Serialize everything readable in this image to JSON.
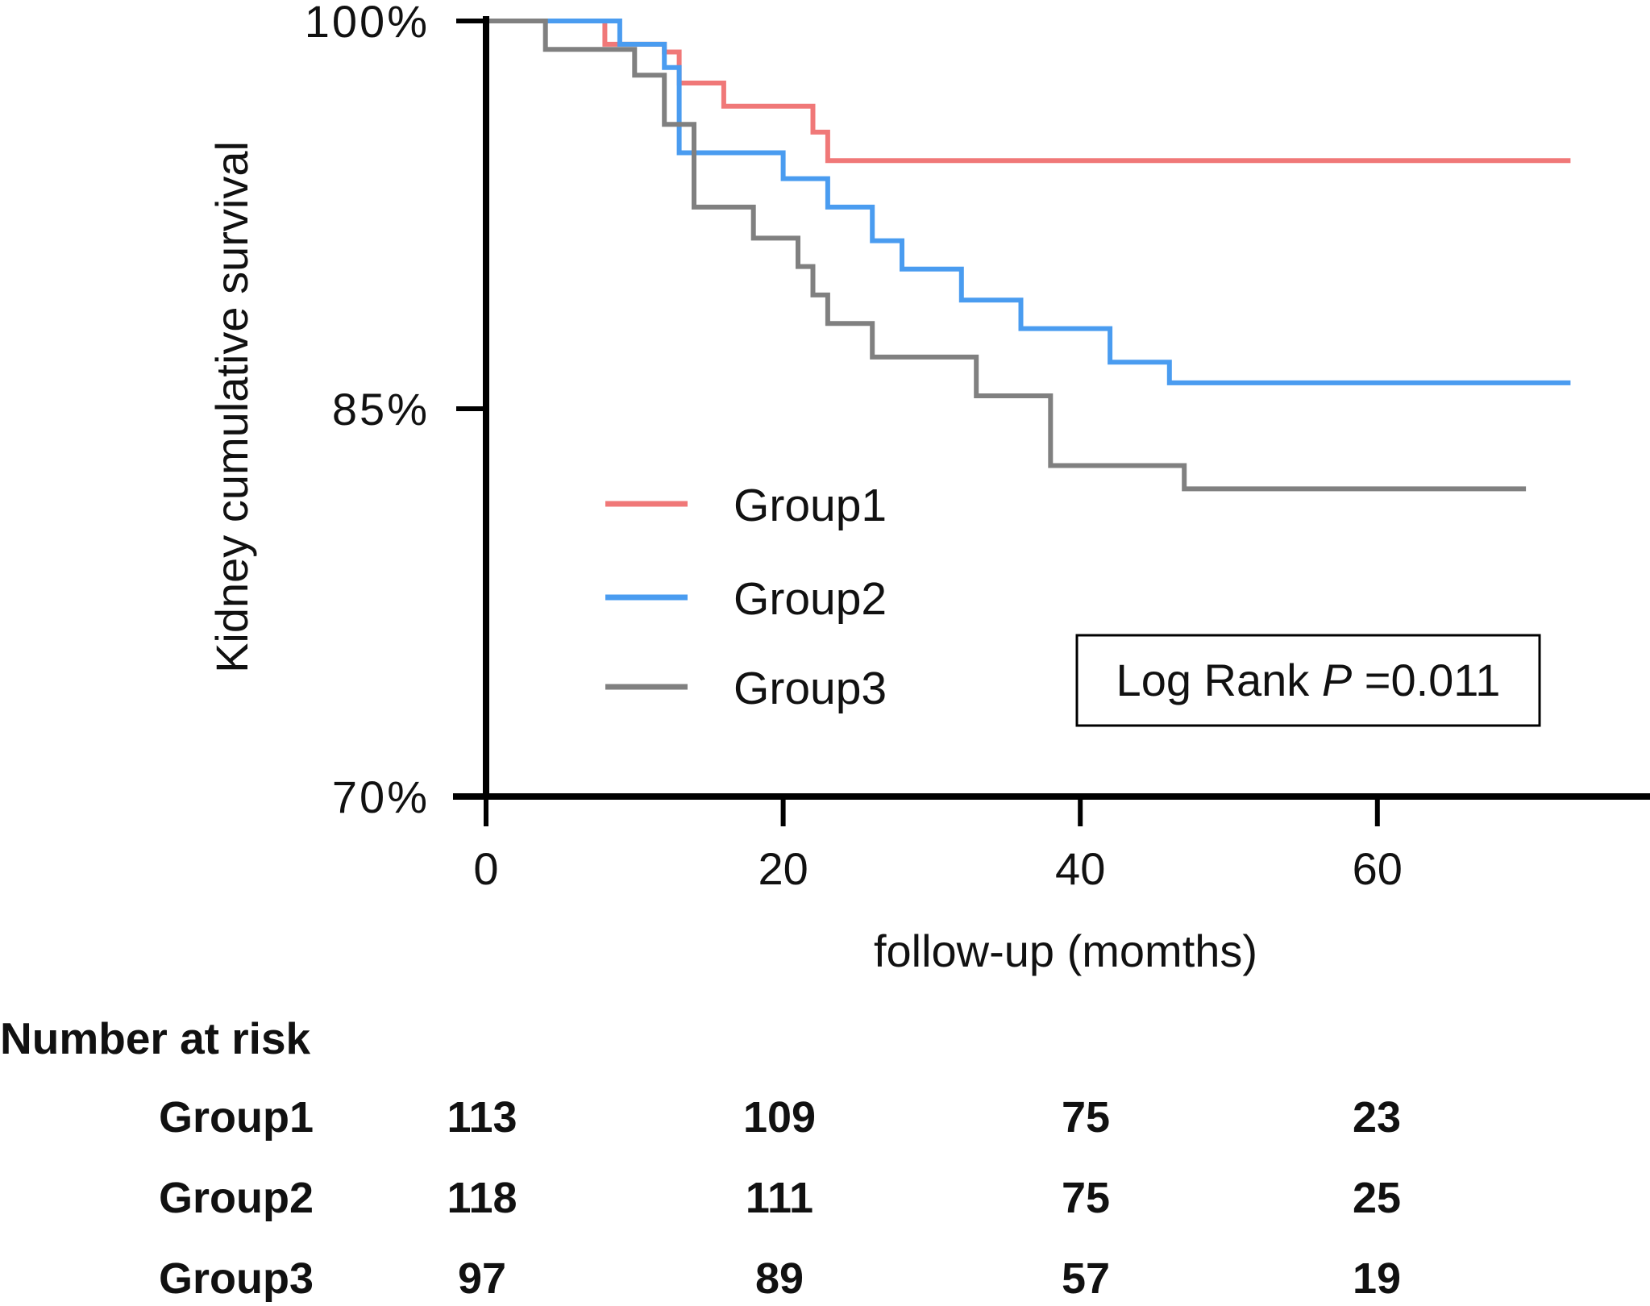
{
  "chart_data": {
    "type": "line",
    "subtype": "kaplan-meier-step",
    "ylabel": "Kidney cumulative survival",
    "xlabel": "follow-up (momths)",
    "xlim": [
      0,
      77
    ],
    "ylim": [
      70,
      100
    ],
    "x_ticks": [
      {
        "value": 0,
        "label": "0"
      },
      {
        "value": 20,
        "label": "20"
      },
      {
        "value": 40,
        "label": "40"
      },
      {
        "value": 60,
        "label": "60"
      }
    ],
    "y_ticks": [
      {
        "value": 100,
        "label": "100%"
      },
      {
        "value": 85,
        "label": "85%"
      },
      {
        "value": 70,
        "label": "70%"
      }
    ],
    "legend_position": "center-left",
    "series": [
      {
        "name": "Group1",
        "color": "#f07878",
        "points": [
          [
            0,
            100
          ],
          [
            8,
            100
          ],
          [
            8,
            99.1
          ],
          [
            12,
            99.1
          ],
          [
            12,
            98.8
          ],
          [
            13,
            98.8
          ],
          [
            13,
            97.6
          ],
          [
            16,
            97.6
          ],
          [
            16,
            96.7
          ],
          [
            22,
            96.7
          ],
          [
            22,
            95.7
          ],
          [
            23,
            95.7
          ],
          [
            23,
            94.6
          ],
          [
            73,
            94.6
          ]
        ]
      },
      {
        "name": "Group2",
        "color": "#4a9cf0",
        "points": [
          [
            0,
            100
          ],
          [
            9,
            100
          ],
          [
            9,
            99.1
          ],
          [
            12,
            99.1
          ],
          [
            12,
            98.2
          ],
          [
            13,
            98.2
          ],
          [
            13,
            94.9
          ],
          [
            20,
            94.9
          ],
          [
            20,
            93.9
          ],
          [
            23,
            93.9
          ],
          [
            23,
            92.8
          ],
          [
            26,
            92.8
          ],
          [
            26,
            91.5
          ],
          [
            28,
            91.5
          ],
          [
            28,
            90.4
          ],
          [
            32,
            90.4
          ],
          [
            32,
            89.2
          ],
          [
            36,
            89.2
          ],
          [
            36,
            88.1
          ],
          [
            42,
            88.1
          ],
          [
            42,
            86.8
          ],
          [
            46,
            86.8
          ],
          [
            46,
            86.0
          ],
          [
            73,
            86.0
          ]
        ]
      },
      {
        "name": "Group3",
        "color": "#808080",
        "points": [
          [
            0,
            100
          ],
          [
            4,
            100
          ],
          [
            4,
            98.9
          ],
          [
            10,
            98.9
          ],
          [
            10,
            97.9
          ],
          [
            12,
            97.9
          ],
          [
            12,
            96.0
          ],
          [
            14,
            96.0
          ],
          [
            14,
            92.8
          ],
          [
            18,
            92.8
          ],
          [
            18,
            91.6
          ],
          [
            21,
            91.6
          ],
          [
            21,
            90.5
          ],
          [
            22,
            90.5
          ],
          [
            22,
            89.4
          ],
          [
            23,
            89.4
          ],
          [
            23,
            88.3
          ],
          [
            26,
            88.3
          ],
          [
            26,
            87.0
          ],
          [
            33,
            87.0
          ],
          [
            33,
            85.5
          ],
          [
            38,
            85.5
          ],
          [
            38,
            82.8
          ],
          [
            47,
            82.8
          ],
          [
            47,
            81.9
          ],
          [
            70,
            81.9
          ]
        ]
      }
    ],
    "annotation": {
      "prefix": "Log Rank ",
      "italic": "P",
      "suffix": " =0.011"
    },
    "risk_table": {
      "title": "Number at risk",
      "times": [
        0,
        20,
        40,
        60
      ],
      "rows": [
        {
          "group": "Group1",
          "values": [
            "113",
            "109",
            "75",
            "23"
          ]
        },
        {
          "group": "Group2",
          "values": [
            "118",
            "111",
            "75",
            "25"
          ]
        },
        {
          "group": "Group3",
          "values": [
            "97",
            "89",
            "57",
            "19"
          ]
        }
      ]
    }
  }
}
